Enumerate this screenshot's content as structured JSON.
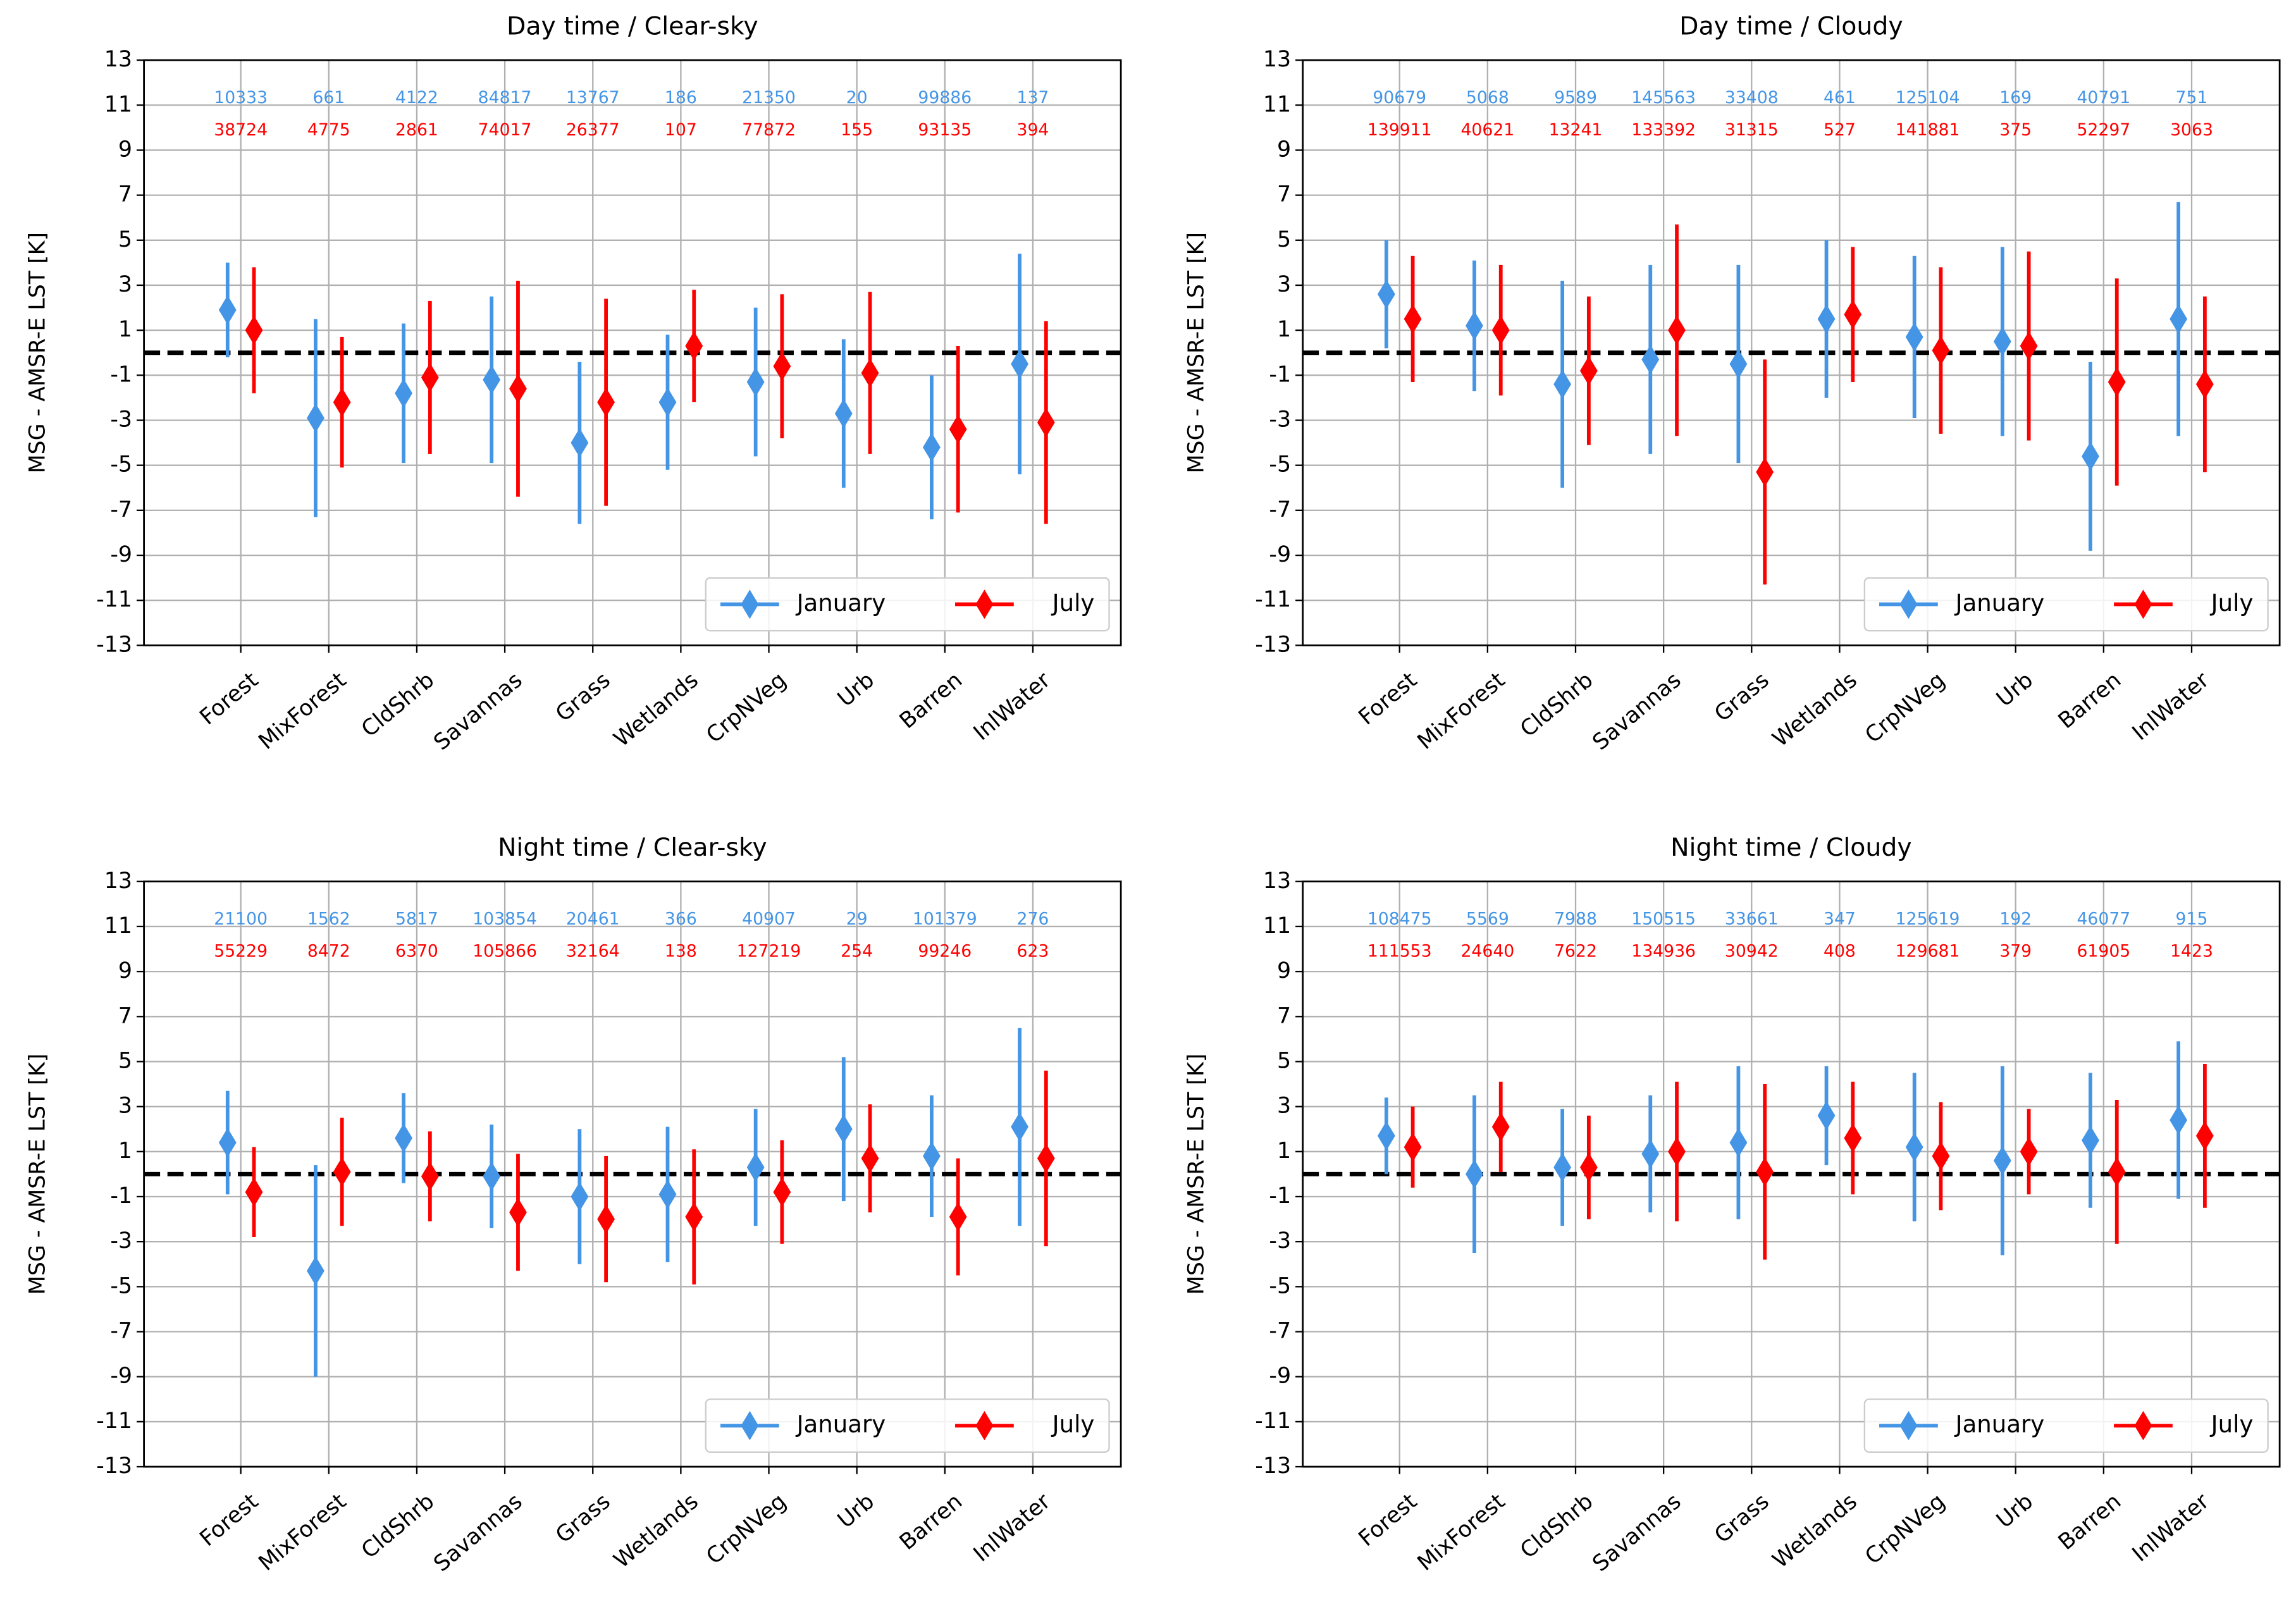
{
  "chart_data": [
    {
      "type": "errorbar",
      "title": "Day time / Clear-sky",
      "ylabel": "MSG - AMSR-E LST [K]",
      "categories": [
        "Forest",
        "MixForest",
        "CldShrb",
        "Savannas",
        "Grass",
        "Wetlands",
        "CrpNVeg",
        "Urb",
        "Barren",
        "InlWater"
      ],
      "series": [
        {
          "name": "January",
          "color": "#4495e6",
          "values": [
            1.9,
            -2.9,
            -1.8,
            -1.2,
            -4.0,
            -2.2,
            -1.3,
            -2.7,
            -4.2,
            -0.5
          ],
          "errors": [
            2.1,
            4.4,
            3.1,
            3.7,
            3.6,
            3.0,
            3.3,
            3.3,
            3.2,
            4.9
          ],
          "counts": [
            10333,
            661,
            4122,
            84817,
            13767,
            186,
            21350,
            20,
            99886,
            137
          ]
        },
        {
          "name": "July",
          "color": "#ff0000",
          "values": [
            1.0,
            -2.2,
            -1.1,
            -1.6,
            -2.2,
            0.3,
            -0.6,
            -0.9,
            -3.4,
            -3.1
          ],
          "errors": [
            2.8,
            2.9,
            3.4,
            4.8,
            4.6,
            2.5,
            3.2,
            3.6,
            3.7,
            4.5
          ],
          "counts": [
            38724,
            4775,
            2861,
            74017,
            26377,
            107,
            77872,
            155,
            93135,
            394
          ]
        }
      ],
      "ylim": [
        -13,
        13
      ],
      "yticks": [
        -13,
        -11,
        -9,
        -7,
        -5,
        -3,
        -1,
        1,
        3,
        5,
        7,
        9,
        11,
        13
      ],
      "grid": true,
      "legend": "lower right",
      "hline": 0
    },
    {
      "type": "errorbar",
      "title": "Day time / Cloudy",
      "ylabel": "MSG - AMSR-E LST [K]",
      "categories": [
        "Forest",
        "MixForest",
        "CldShrb",
        "Savannas",
        "Grass",
        "Wetlands",
        "CrpNVeg",
        "Urb",
        "Barren",
        "InlWater"
      ],
      "series": [
        {
          "name": "January",
          "color": "#4495e6",
          "values": [
            2.6,
            1.2,
            -1.4,
            -0.3,
            -0.5,
            1.5,
            0.7,
            0.5,
            -4.6,
            1.5
          ],
          "errors": [
            2.4,
            2.9,
            4.6,
            4.2,
            4.4,
            3.5,
            3.6,
            4.2,
            4.2,
            5.2
          ],
          "counts": [
            90679,
            5068,
            9589,
            145563,
            33408,
            461,
            125104,
            169,
            40791,
            751
          ]
        },
        {
          "name": "July",
          "color": "#ff0000",
          "values": [
            1.5,
            1.0,
            -0.8,
            1.0,
            -5.3,
            1.7,
            0.1,
            0.3,
            -1.3,
            -1.4
          ],
          "errors": [
            2.8,
            2.9,
            3.3,
            4.7,
            5.0,
            3.0,
            3.7,
            4.2,
            4.6,
            3.9
          ],
          "counts": [
            139911,
            40621,
            13241,
            133392,
            31315,
            527,
            141881,
            375,
            52297,
            3063
          ]
        }
      ],
      "ylim": [
        -13,
        13
      ],
      "yticks": [
        -13,
        -11,
        -9,
        -7,
        -5,
        -3,
        -1,
        1,
        3,
        5,
        7,
        9,
        11,
        13
      ],
      "grid": true,
      "legend": "lower right",
      "hline": 0
    },
    {
      "type": "errorbar",
      "title": "Night time / Clear-sky",
      "ylabel": "MSG - AMSR-E LST [K]",
      "categories": [
        "Forest",
        "MixForest",
        "CldShrb",
        "Savannas",
        "Grass",
        "Wetlands",
        "CrpNVeg",
        "Urb",
        "Barren",
        "InlWater"
      ],
      "series": [
        {
          "name": "January",
          "color": "#4495e6",
          "values": [
            1.4,
            -4.3,
            1.6,
            -0.1,
            -1.0,
            -0.9,
            0.3,
            2.0,
            0.8,
            2.1
          ],
          "errors": [
            2.3,
            4.7,
            2.0,
            2.3,
            3.0,
            3.0,
            2.6,
            3.2,
            2.7,
            4.4
          ],
          "counts": [
            21100,
            1562,
            5817,
            103854,
            20461,
            366,
            40907,
            29,
            101379,
            276
          ]
        },
        {
          "name": "July",
          "color": "#ff0000",
          "values": [
            -0.8,
            0.1,
            -0.1,
            -1.7,
            -2.0,
            -1.9,
            -0.8,
            0.7,
            -1.9,
            0.7
          ],
          "errors": [
            2.0,
            2.4,
            2.0,
            2.6,
            2.8,
            3.0,
            2.3,
            2.4,
            2.6,
            3.9
          ],
          "counts": [
            55229,
            8472,
            6370,
            105866,
            32164,
            138,
            127219,
            254,
            99246,
            623
          ]
        }
      ],
      "ylim": [
        -13,
        13
      ],
      "yticks": [
        -13,
        -11,
        -9,
        -7,
        -5,
        -3,
        -1,
        1,
        3,
        5,
        7,
        9,
        11,
        13
      ],
      "grid": true,
      "legend": "lower right",
      "hline": 0
    },
    {
      "type": "errorbar",
      "title": "Night time / Cloudy",
      "ylabel": "MSG - AMSR-E LST [K]",
      "categories": [
        "Forest",
        "MixForest",
        "CldShrb",
        "Savannas",
        "Grass",
        "Wetlands",
        "CrpNVeg",
        "Urb",
        "Barren",
        "InlWater"
      ],
      "series": [
        {
          "name": "January",
          "color": "#4495e6",
          "values": [
            1.7,
            0.0,
            0.3,
            0.9,
            1.4,
            2.6,
            1.2,
            0.6,
            1.5,
            2.4
          ],
          "errors": [
            1.7,
            3.5,
            2.6,
            2.6,
            3.4,
            2.2,
            3.3,
            4.2,
            3.0,
            3.5
          ],
          "counts": [
            108475,
            5569,
            7988,
            150515,
            33661,
            347,
            125619,
            192,
            46077,
            915
          ]
        },
        {
          "name": "July",
          "color": "#ff0000",
          "values": [
            1.2,
            2.1,
            0.3,
            1.0,
            0.1,
            1.6,
            0.8,
            1.0,
            0.1,
            1.7
          ],
          "errors": [
            1.8,
            2.0,
            2.3,
            3.1,
            3.9,
            2.5,
            2.4,
            1.9,
            3.2,
            3.2
          ],
          "counts": [
            111553,
            24640,
            7622,
            134936,
            30942,
            408,
            129681,
            379,
            61905,
            1423
          ]
        }
      ],
      "ylim": [
        -13,
        13
      ],
      "yticks": [
        -13,
        -11,
        -9,
        -7,
        -5,
        -3,
        -1,
        1,
        3,
        5,
        7,
        9,
        11,
        13
      ],
      "grid": true,
      "legend": "lower right",
      "hline": 0
    }
  ]
}
